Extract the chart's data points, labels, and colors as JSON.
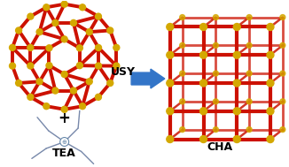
{
  "bg_color": "#ffffff",
  "arrow_color": "#3375c8",
  "label_usy": "USY",
  "label_tea": "TEA",
  "label_cha": "CHA",
  "label_plus": "+",
  "label_fontsize": 9,
  "plus_fontsize": 12,
  "bond_color_red": "#cc1100",
  "node_color_yellow": "#d4a800",
  "tea_line_color": "#7788aa",
  "tea_node_color": "#6688aa",
  "figsize": [
    3.26,
    1.89
  ],
  "dpi": 100
}
